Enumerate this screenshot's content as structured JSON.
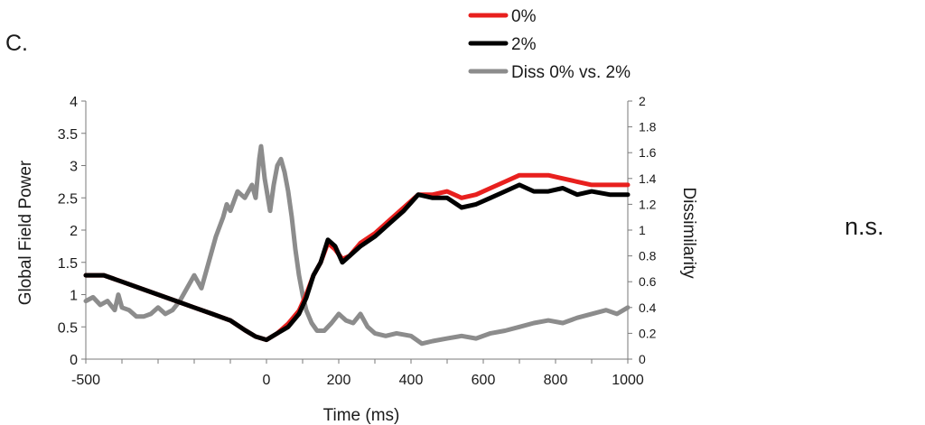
{
  "panel_label": "C.",
  "annotation": "n.s.",
  "chart_data": {
    "type": "line",
    "xlabel": "Time (ms)",
    "ylabel_left": "Global Field Power",
    "ylabel_right": "Dissimilarity",
    "xlim": [
      -500,
      1000
    ],
    "ylim_left": [
      0,
      4
    ],
    "ylim_right": [
      0,
      2
    ],
    "x_ticks": [
      -500,
      0,
      200,
      400,
      600,
      800,
      1000
    ],
    "y_left_ticks": [
      "0",
      "0.5",
      "1",
      "1.5",
      "2",
      "2.5",
      "3",
      "3.5",
      "4"
    ],
    "y_right_ticks": [
      "0",
      "0.2",
      "0.4",
      "0.6",
      "0.8",
      "1",
      "1.2",
      "1.4",
      "1.6",
      "1.8",
      "2"
    ],
    "grid": false,
    "legend_position": "top-right",
    "series": [
      {
        "name": "0%",
        "axis": "left",
        "color": "#e8201e",
        "points": [
          [
            -500,
            1.3
          ],
          [
            -450,
            1.3
          ],
          [
            -400,
            1.2
          ],
          [
            -350,
            1.1
          ],
          [
            -300,
            1.0
          ],
          [
            -250,
            0.9
          ],
          [
            -200,
            0.8
          ],
          [
            -150,
            0.7
          ],
          [
            -100,
            0.6
          ],
          [
            -60,
            0.45
          ],
          [
            -30,
            0.35
          ],
          [
            0,
            0.3
          ],
          [
            30,
            0.4
          ],
          [
            60,
            0.55
          ],
          [
            90,
            0.75
          ],
          [
            110,
            1.0
          ],
          [
            130,
            1.3
          ],
          [
            150,
            1.5
          ],
          [
            170,
            1.8
          ],
          [
            190,
            1.7
          ],
          [
            210,
            1.55
          ],
          [
            230,
            1.6
          ],
          [
            260,
            1.8
          ],
          [
            300,
            1.95
          ],
          [
            340,
            2.15
          ],
          [
            380,
            2.35
          ],
          [
            420,
            2.55
          ],
          [
            460,
            2.55
          ],
          [
            500,
            2.6
          ],
          [
            540,
            2.5
          ],
          [
            580,
            2.55
          ],
          [
            620,
            2.65
          ],
          [
            660,
            2.75
          ],
          [
            700,
            2.85
          ],
          [
            740,
            2.85
          ],
          [
            780,
            2.85
          ],
          [
            820,
            2.8
          ],
          [
            860,
            2.75
          ],
          [
            900,
            2.7
          ],
          [
            950,
            2.7
          ],
          [
            1000,
            2.7
          ]
        ]
      },
      {
        "name": "2%",
        "axis": "left",
        "color": "#000000",
        "points": [
          [
            -500,
            1.3
          ],
          [
            -450,
            1.3
          ],
          [
            -400,
            1.2
          ],
          [
            -350,
            1.1
          ],
          [
            -300,
            1.0
          ],
          [
            -250,
            0.9
          ],
          [
            -200,
            0.8
          ],
          [
            -150,
            0.7
          ],
          [
            -100,
            0.6
          ],
          [
            -60,
            0.45
          ],
          [
            -30,
            0.35
          ],
          [
            0,
            0.3
          ],
          [
            30,
            0.4
          ],
          [
            60,
            0.5
          ],
          [
            90,
            0.7
          ],
          [
            110,
            0.95
          ],
          [
            130,
            1.3
          ],
          [
            150,
            1.5
          ],
          [
            170,
            1.85
          ],
          [
            190,
            1.75
          ],
          [
            210,
            1.5
          ],
          [
            230,
            1.6
          ],
          [
            260,
            1.75
          ],
          [
            300,
            1.9
          ],
          [
            340,
            2.1
          ],
          [
            380,
            2.3
          ],
          [
            420,
            2.55
          ],
          [
            460,
            2.5
          ],
          [
            500,
            2.5
          ],
          [
            540,
            2.35
          ],
          [
            580,
            2.4
          ],
          [
            620,
            2.5
          ],
          [
            660,
            2.6
          ],
          [
            700,
            2.7
          ],
          [
            740,
            2.6
          ],
          [
            780,
            2.6
          ],
          [
            820,
            2.65
          ],
          [
            860,
            2.55
          ],
          [
            900,
            2.6
          ],
          [
            950,
            2.55
          ],
          [
            1000,
            2.55
          ]
        ]
      },
      {
        "name": "Diss 0% vs. 2%",
        "axis": "right",
        "color": "#8c8c8c",
        "points": [
          [
            -500,
            0.45
          ],
          [
            -480,
            0.48
          ],
          [
            -460,
            0.42
          ],
          [
            -440,
            0.45
          ],
          [
            -420,
            0.38
          ],
          [
            -410,
            0.5
          ],
          [
            -400,
            0.4
          ],
          [
            -380,
            0.38
          ],
          [
            -360,
            0.33
          ],
          [
            -340,
            0.33
          ],
          [
            -320,
            0.35
          ],
          [
            -300,
            0.4
          ],
          [
            -280,
            0.35
          ],
          [
            -260,
            0.38
          ],
          [
            -240,
            0.45
          ],
          [
            -220,
            0.55
          ],
          [
            -200,
            0.65
          ],
          [
            -180,
            0.55
          ],
          [
            -160,
            0.75
          ],
          [
            -140,
            0.95
          ],
          [
            -120,
            1.1
          ],
          [
            -110,
            1.2
          ],
          [
            -100,
            1.15
          ],
          [
            -80,
            1.3
          ],
          [
            -60,
            1.25
          ],
          [
            -40,
            1.35
          ],
          [
            -30,
            1.25
          ],
          [
            -20,
            1.55
          ],
          [
            -15,
            1.65
          ],
          [
            -5,
            1.4
          ],
          [
            10,
            1.15
          ],
          [
            20,
            1.35
          ],
          [
            30,
            1.5
          ],
          [
            40,
            1.55
          ],
          [
            50,
            1.45
          ],
          [
            60,
            1.3
          ],
          [
            70,
            1.1
          ],
          [
            80,
            0.85
          ],
          [
            90,
            0.65
          ],
          [
            100,
            0.5
          ],
          [
            110,
            0.38
          ],
          [
            125,
            0.28
          ],
          [
            140,
            0.22
          ],
          [
            160,
            0.22
          ],
          [
            180,
            0.28
          ],
          [
            200,
            0.35
          ],
          [
            220,
            0.3
          ],
          [
            240,
            0.28
          ],
          [
            260,
            0.35
          ],
          [
            280,
            0.25
          ],
          [
            300,
            0.2
          ],
          [
            330,
            0.18
          ],
          [
            360,
            0.2
          ],
          [
            400,
            0.18
          ],
          [
            430,
            0.12
          ],
          [
            460,
            0.14
          ],
          [
            500,
            0.16
          ],
          [
            540,
            0.18
          ],
          [
            580,
            0.16
          ],
          [
            620,
            0.2
          ],
          [
            660,
            0.22
          ],
          [
            700,
            0.25
          ],
          [
            740,
            0.28
          ],
          [
            780,
            0.3
          ],
          [
            820,
            0.28
          ],
          [
            860,
            0.32
          ],
          [
            900,
            0.35
          ],
          [
            940,
            0.38
          ],
          [
            970,
            0.35
          ],
          [
            1000,
            0.4
          ]
        ]
      }
    ]
  }
}
